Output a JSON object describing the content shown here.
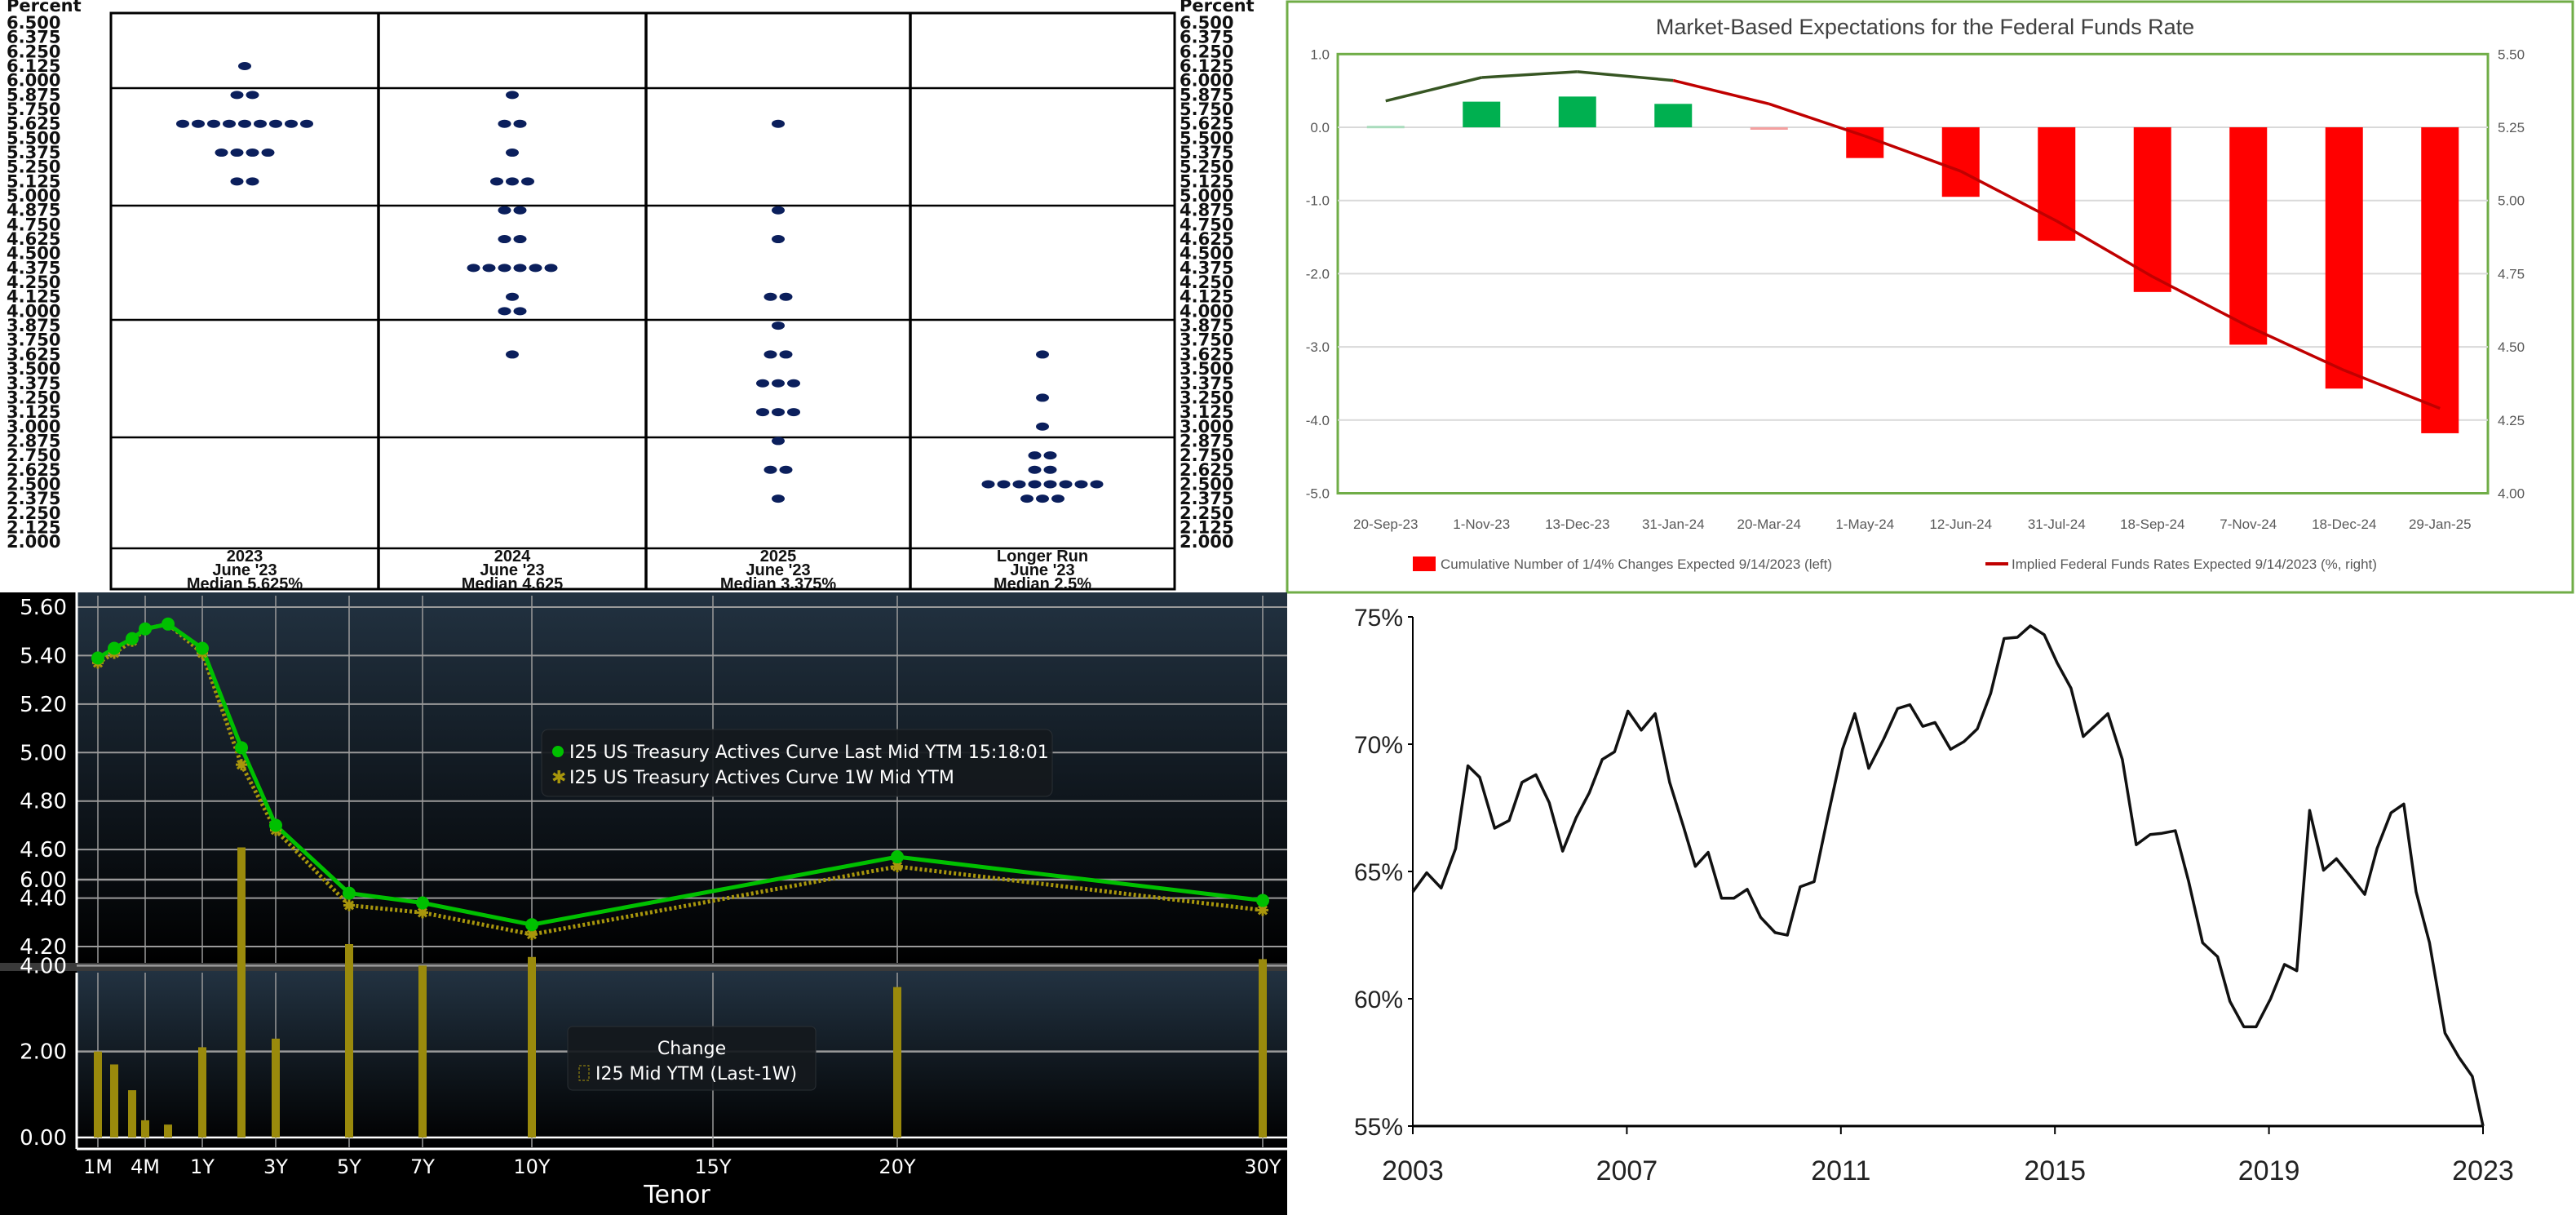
{
  "chart_data": [
    {
      "type": "scatter",
      "subtype": "dot-plot",
      "ylabel": "Percent",
      "yticks": [
        "6.500",
        "6.375",
        "6.250",
        "6.125",
        "6.000",
        "5.875",
        "5.750",
        "5.625",
        "5.500",
        "5.375",
        "5.250",
        "5.125",
        "5.000",
        "4.875",
        "4.750",
        "4.625",
        "4.500",
        "4.375",
        "4.250",
        "4.125",
        "4.000",
        "3.875",
        "3.750",
        "3.625",
        "3.500",
        "3.375",
        "3.250",
        "3.125",
        "3.000",
        "2.875",
        "2.750",
        "2.625",
        "2.500",
        "2.375",
        "2.250",
        "2.125",
        "2.000"
      ],
      "ylim": [
        2.0,
        6.5
      ],
      "columns": [
        {
          "year": "2023",
          "ref": "June '23",
          "median": "Median 5.625%",
          "dots": [
            [
              6.125,
              1
            ],
            [
              5.875,
              2
            ],
            [
              5.625,
              9
            ],
            [
              5.375,
              4
            ],
            [
              5.125,
              2
            ]
          ]
        },
        {
          "year": "2024",
          "ref": "June '23",
          "median": "Median 4.625",
          "dots": [
            [
              5.875,
              1
            ],
            [
              5.625,
              2
            ],
            [
              5.375,
              1
            ],
            [
              5.125,
              3
            ],
            [
              4.875,
              2
            ],
            [
              4.625,
              2
            ],
            [
              4.375,
              6
            ],
            [
              4.125,
              1
            ],
            [
              4.0,
              2
            ],
            [
              3.625,
              1
            ]
          ]
        },
        {
          "year": "2025",
          "ref": "June '23",
          "median": "Median 3.375%",
          "dots": [
            [
              5.625,
              1
            ],
            [
              4.875,
              1
            ],
            [
              4.625,
              1
            ],
            [
              4.125,
              2
            ],
            [
              3.875,
              1
            ],
            [
              3.625,
              2
            ],
            [
              3.375,
              3
            ],
            [
              3.125,
              3
            ],
            [
              2.875,
              1
            ],
            [
              2.625,
              2
            ],
            [
              2.375,
              1
            ]
          ]
        },
        {
          "year": "Longer Run",
          "ref": "June '23",
          "median": "Median 2.5%",
          "dots": [
            [
              3.625,
              1
            ],
            [
              3.25,
              1
            ],
            [
              3.0,
              1
            ],
            [
              2.75,
              2
            ],
            [
              2.625,
              2
            ],
            [
              2.5,
              8
            ],
            [
              2.375,
              3
            ]
          ]
        }
      ],
      "dot_color": "#0b1f5c"
    },
    {
      "type": "bar",
      "title": "Market-Based Expectations for the Federal Funds Rate",
      "categories": [
        "20-Sep-23",
        "1-Nov-23",
        "13-Dec-23",
        "31-Jan-24",
        "20-Mar-24",
        "1-May-24",
        "12-Jun-24",
        "31-Jul-24",
        "18-Sep-24",
        "7-Nov-24",
        "18-Dec-24",
        "29-Jan-25"
      ],
      "series": [
        {
          "name": "Cumulative Number of 1/4% Changes Expected 9/14/2023 (left)",
          "axis": "left",
          "type": "bar",
          "values": [
            0.02,
            0.35,
            0.42,
            0.32,
            -0.03,
            -0.42,
            -0.95,
            -1.55,
            -2.25,
            -2.97,
            -3.57,
            -4.18
          ]
        },
        {
          "name": "Implied Federal Funds Rates Expected 9/14/2023 (%, right)",
          "axis": "right",
          "type": "line",
          "values": [
            5.34,
            5.42,
            5.44,
            5.41,
            5.33,
            5.22,
            5.1,
            4.93,
            4.74,
            4.57,
            4.42,
            4.29
          ]
        }
      ],
      "ylim_left": [
        -5.0,
        1.0
      ],
      "yticks_left": [
        "1.0",
        "0.0",
        "-1.0",
        "-2.0",
        "-3.0",
        "-4.0",
        "-5.0"
      ],
      "ylim_right": [
        4.0,
        5.5
      ],
      "yticks_right": [
        "5.50",
        "5.25",
        "5.00",
        "4.75",
        "4.50",
        "4.25",
        "4.00"
      ],
      "legend_position": "bottom",
      "colors": {
        "positive": "#00b050",
        "negative": "#ff0000",
        "line_up": "#375623",
        "line_down": "#c00000",
        "border": "#70ad47"
      }
    },
    {
      "type": "line",
      "tenors": [
        "1M",
        "2M",
        "3M",
        "4M",
        "6M",
        "1Y",
        "2Y",
        "3Y",
        "5Y",
        "7Y",
        "10Y",
        "20Y",
        "30Y"
      ],
      "series": [
        {
          "name": "I25 US Treasury Actives Curve Last Mid YTM 15:18:01",
          "values": [
            5.39,
            5.43,
            5.47,
            5.51,
            5.53,
            5.43,
            5.02,
            4.7,
            4.42,
            4.38,
            4.29,
            4.57,
            4.39
          ]
        },
        {
          "name": "I25 US Treasury Actives Curve 1W Mid YTM",
          "values": [
            5.37,
            5.41,
            5.46,
            5.51,
            5.53,
            5.41,
            4.95,
            4.68,
            4.37,
            4.34,
            4.25,
            4.53,
            4.35
          ]
        }
      ],
      "ylim": [
        4.2,
        5.6
      ],
      "yticks": [
        "5.60",
        "5.40",
        "5.20",
        "5.00",
        "4.80",
        "4.60",
        "4.40",
        "4.20"
      ],
      "xticks": [
        "1M",
        "4M",
        "1Y",
        "3Y",
        "5Y",
        "7Y",
        "10Y",
        "15Y",
        "20Y",
        "30Y"
      ],
      "xlabel": "Tenor",
      "change_panel": {
        "title": "Change",
        "name": "I25 Mid YTM (Last-1W)",
        "values": [
          2.0,
          1.7,
          1.1,
          0.4,
          0.3,
          2.1,
          6.75,
          2.3,
          4.5,
          4.0,
          4.2,
          3.5,
          4.15
        ],
        "ylim": [
          0,
          7
        ],
        "yticks": [
          "6.00",
          "4.00",
          "2.00",
          "0.00"
        ]
      },
      "colors": {
        "last": "#00c000",
        "week": "#a8960c",
        "change": "#9a8a0c"
      }
    },
    {
      "type": "line",
      "x": [
        2003.0,
        2003.26,
        2003.53,
        2003.8,
        2004.03,
        2004.25,
        2004.53,
        2004.8,
        2005.04,
        2005.3,
        2005.55,
        2005.8,
        2006.05,
        2006.3,
        2006.54,
        2006.77,
        2007.02,
        2007.27,
        2007.53,
        2007.8,
        2008.06,
        2008.28,
        2008.52,
        2008.77,
        2009.0,
        2009.25,
        2009.5,
        2009.77,
        2010.0,
        2010.24,
        2010.5,
        2010.76,
        2011.03,
        2011.26,
        2011.52,
        2011.8,
        2012.06,
        2012.29,
        2012.53,
        2012.76,
        2013.05,
        2013.3,
        2013.55,
        2013.8,
        2014.05,
        2014.3,
        2014.54,
        2014.8,
        2015.04,
        2015.3,
        2015.53,
        2015.76,
        2015.99,
        2016.26,
        2016.52,
        2016.78,
        2017.0,
        2017.25,
        2017.5,
        2017.76,
        2018.04,
        2018.27,
        2018.53,
        2018.76,
        2019.03,
        2019.29,
        2019.52,
        2019.76,
        2020.02,
        2020.26,
        2020.53,
        2020.79,
        2021.02,
        2021.28,
        2021.52,
        2021.75,
        2022.0,
        2022.29,
        2022.55,
        2022.8,
        2023.0
      ],
      "y": [
        64.2,
        64.95,
        64.35,
        65.9,
        69.15,
        68.7,
        66.7,
        67.0,
        68.5,
        68.8,
        67.7,
        65.8,
        67.1,
        68.1,
        69.4,
        69.7,
        71.3,
        70.55,
        71.2,
        68.5,
        66.75,
        65.2,
        65.75,
        63.95,
        63.95,
        64.3,
        63.2,
        62.6,
        62.5,
        64.4,
        64.6,
        67.2,
        69.8,
        71.2,
        69.05,
        70.2,
        71.4,
        71.55,
        70.7,
        70.85,
        69.8,
        70.1,
        70.6,
        72.0,
        74.15,
        74.2,
        74.65,
        74.3,
        73.2,
        72.2,
        70.3,
        70.75,
        71.2,
        69.4,
        66.05,
        66.45,
        66.5,
        66.6,
        64.6,
        62.2,
        61.65,
        59.9,
        58.9,
        58.9,
        60.0,
        61.35,
        61.1,
        67.4,
        65.05,
        65.5,
        64.8,
        64.1,
        65.9,
        67.3,
        67.65,
        64.2,
        62.2,
        58.65,
        57.7,
        56.95,
        55.0
      ],
      "xlim": [
        2003,
        2023
      ],
      "ylim": [
        55,
        75
      ],
      "xticks": [
        "2003",
        "2007",
        "2011",
        "2015",
        "2019",
        "2023"
      ],
      "yticks": [
        "75%",
        "70%",
        "65%",
        "60%",
        "55%"
      ]
    }
  ]
}
